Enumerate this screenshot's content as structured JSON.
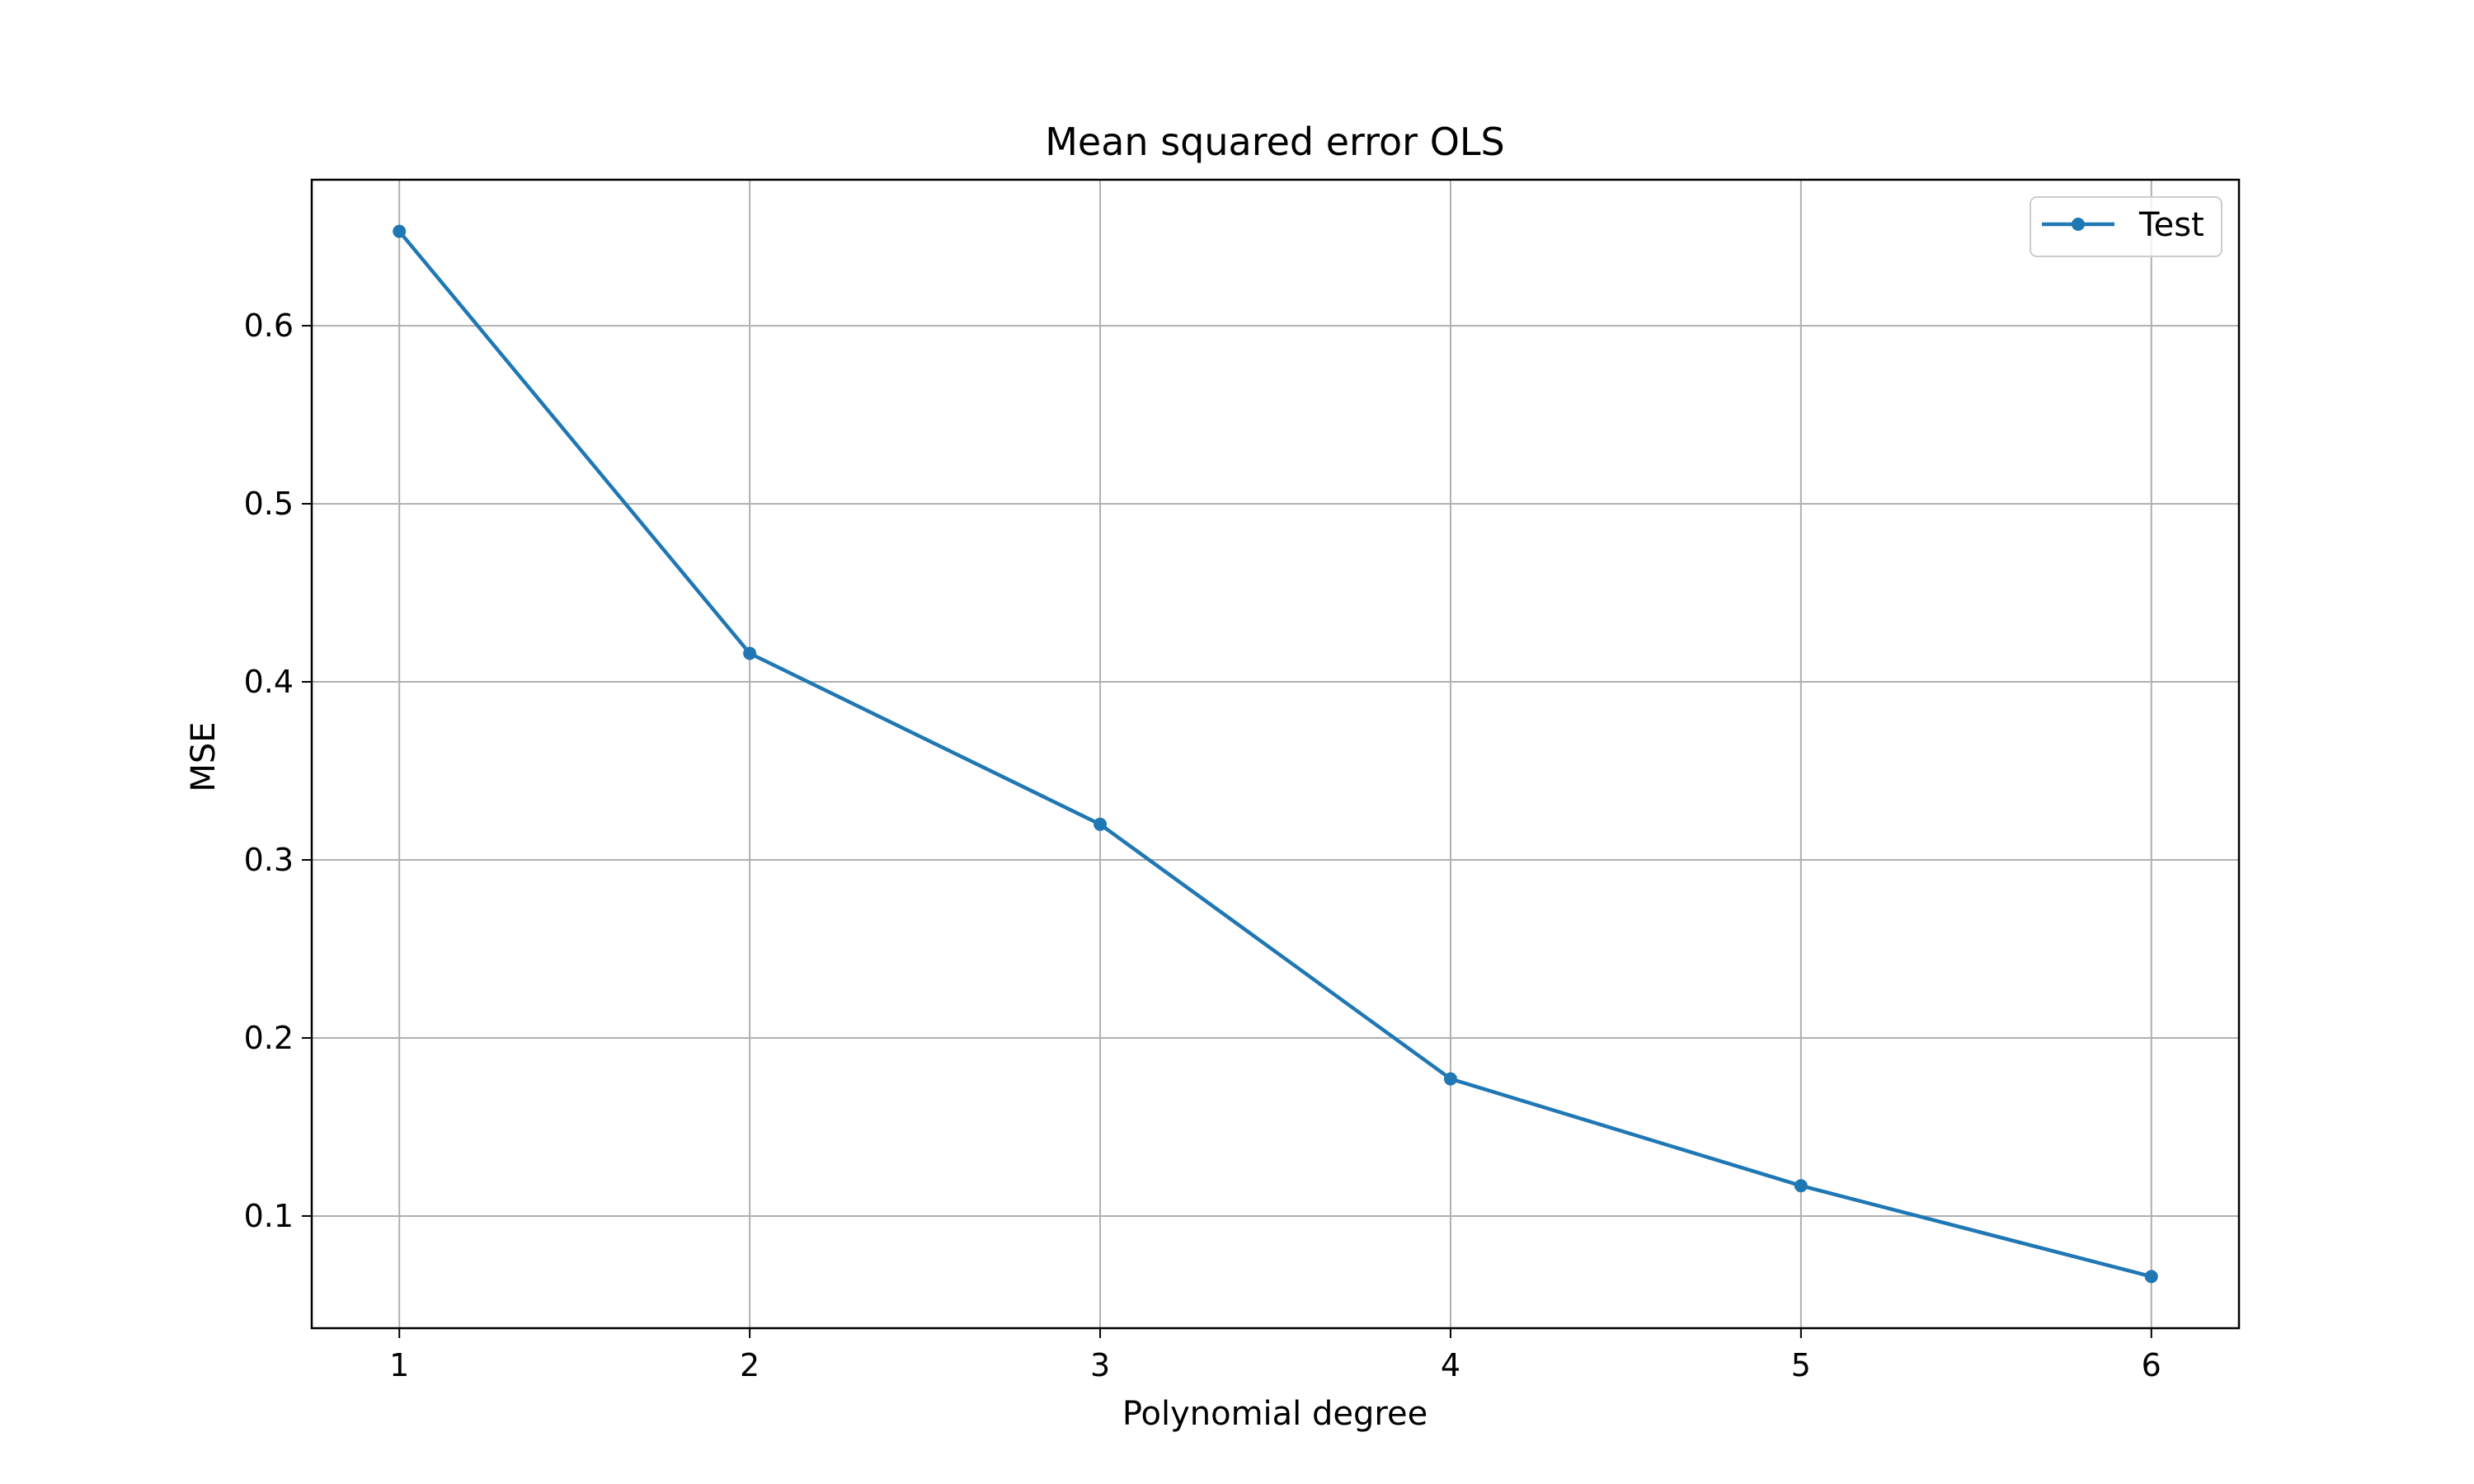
{
  "chart_data": {
    "type": "line",
    "title": "Mean squared error OLS",
    "xlabel": "Polynomial degree",
    "ylabel": "MSE",
    "x": [
      1,
      2,
      3,
      4,
      5,
      6
    ],
    "series": [
      {
        "name": "Test",
        "values": [
          0.653,
          0.416,
          0.32,
          0.177,
          0.117,
          0.066
        ],
        "color": "#1f77b4",
        "marker": "circle"
      }
    ],
    "xticks": [
      "1",
      "2",
      "3",
      "4",
      "5",
      "6"
    ],
    "yticks": [
      "0.1",
      "0.2",
      "0.3",
      "0.4",
      "0.5",
      "0.6"
    ],
    "xlim": [
      0.75,
      6.25
    ],
    "ylim": [
      0.037,
      0.682
    ],
    "grid": true,
    "legend_position": "top-right"
  }
}
